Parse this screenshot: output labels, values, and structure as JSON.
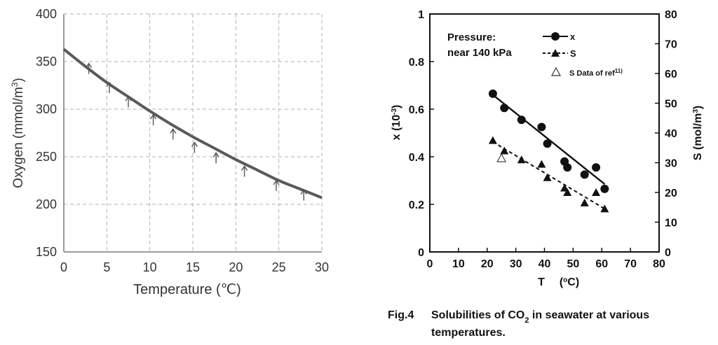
{
  "chart_data": [
    {
      "type": "line",
      "xlabel_main": "Temperature (",
      "xlabel_unit": "℃",
      "xlabel_close": ")",
      "ylabel_main": "Oxygen (mmol/m",
      "ylabel_sup": "3",
      "ylabel_close": ")",
      "xlim": [
        0,
        30
      ],
      "ylim": [
        150,
        400
      ],
      "xticks": [
        "0",
        "5",
        "10",
        "15",
        "20",
        "25",
        "30"
      ],
      "yticks": [
        "150",
        "200",
        "250",
        "300",
        "350",
        "400"
      ],
      "grid": true,
      "curve": {
        "x": [
          0,
          2.5,
          5,
          7.5,
          10,
          12.5,
          15,
          17.5,
          20,
          22.5,
          25,
          27.5,
          30
        ],
        "y": [
          363,
          345,
          328,
          313,
          298,
          284,
          271,
          259,
          247,
          236,
          225,
          216,
          207
        ]
      },
      "arrows": {
        "x": [
          2.9,
          5.3,
          7.5,
          10.4,
          12.7,
          15.2,
          17.7,
          21.0,
          24.7,
          27.9
        ],
        "y": [
          337,
          317,
          302,
          283,
          268,
          254,
          243,
          229,
          214,
          204
        ]
      },
      "colors": {
        "curve": "#5a5a5a",
        "grid": "#b0b0b0",
        "arrow": "#555555"
      }
    },
    {
      "type": "scatter",
      "title_line1": "Pressure:",
      "title_line2": "near 140 kPa",
      "xlabel": "T",
      "xlabel_unit_open": "(",
      "xlabel_unit_sup": "o",
      "xlabel_unit_close": "C)",
      "ylabel_left_main": "x (10",
      "ylabel_left_sup": "-3",
      "ylabel_left_close": ")",
      "ylabel_right_main": "S (mol/m",
      "ylabel_right_sup": "3",
      "ylabel_right_close": ")",
      "xlim": [
        0,
        80
      ],
      "ylim_left": [
        0,
        1
      ],
      "ylim_right": [
        0,
        80
      ],
      "xticks": [
        "0",
        "10",
        "20",
        "30",
        "40",
        "50",
        "60",
        "70",
        "80"
      ],
      "yticks_left": [
        "0",
        "0.2",
        "0.4",
        "0.6",
        "0.8",
        "1"
      ],
      "yticks_right": [
        "0",
        "10",
        "20",
        "30",
        "40",
        "50",
        "60",
        "70",
        "80"
      ],
      "legend": [
        {
          "label": "x",
          "marker": "filled-circle",
          "line": "solid"
        },
        {
          "label": "S",
          "marker": "filled-triangle",
          "line": "dashed"
        },
        {
          "label": "S  Data of  ref",
          "label_sup": "11)",
          "marker": "open-triangle",
          "line": "none"
        }
      ],
      "series": [
        {
          "name": "x",
          "axis": "left",
          "x": [
            22,
            26,
            32,
            39,
            41,
            47,
            48,
            54,
            58,
            61
          ],
          "y": [
            0.665,
            0.605,
            0.555,
            0.525,
            0.455,
            0.38,
            0.355,
            0.325,
            0.355,
            0.265
          ],
          "fit_x": [
            22,
            61
          ],
          "fit_y": [
            0.66,
            0.285
          ]
        },
        {
          "name": "S",
          "axis": "right",
          "x": [
            22,
            26,
            32,
            39,
            41,
            47,
            48,
            54,
            58,
            61
          ],
          "y": [
            37.5,
            34,
            31,
            29.5,
            25,
            21.5,
            20,
            16.5,
            20,
            14.5
          ],
          "fit_x": [
            22,
            61
          ],
          "fit_y": [
            37,
            14.5
          ]
        },
        {
          "name": "S Data of ref",
          "axis": "right",
          "x": [
            25
          ],
          "y": [
            31.5
          ]
        }
      ],
      "caption_fig": "Fig.4",
      "caption_text_a": "Solubilities of CO",
      "caption_sub": "2",
      "caption_text_b": " in seawater at various",
      "caption_line2": "temperatures."
    }
  ]
}
